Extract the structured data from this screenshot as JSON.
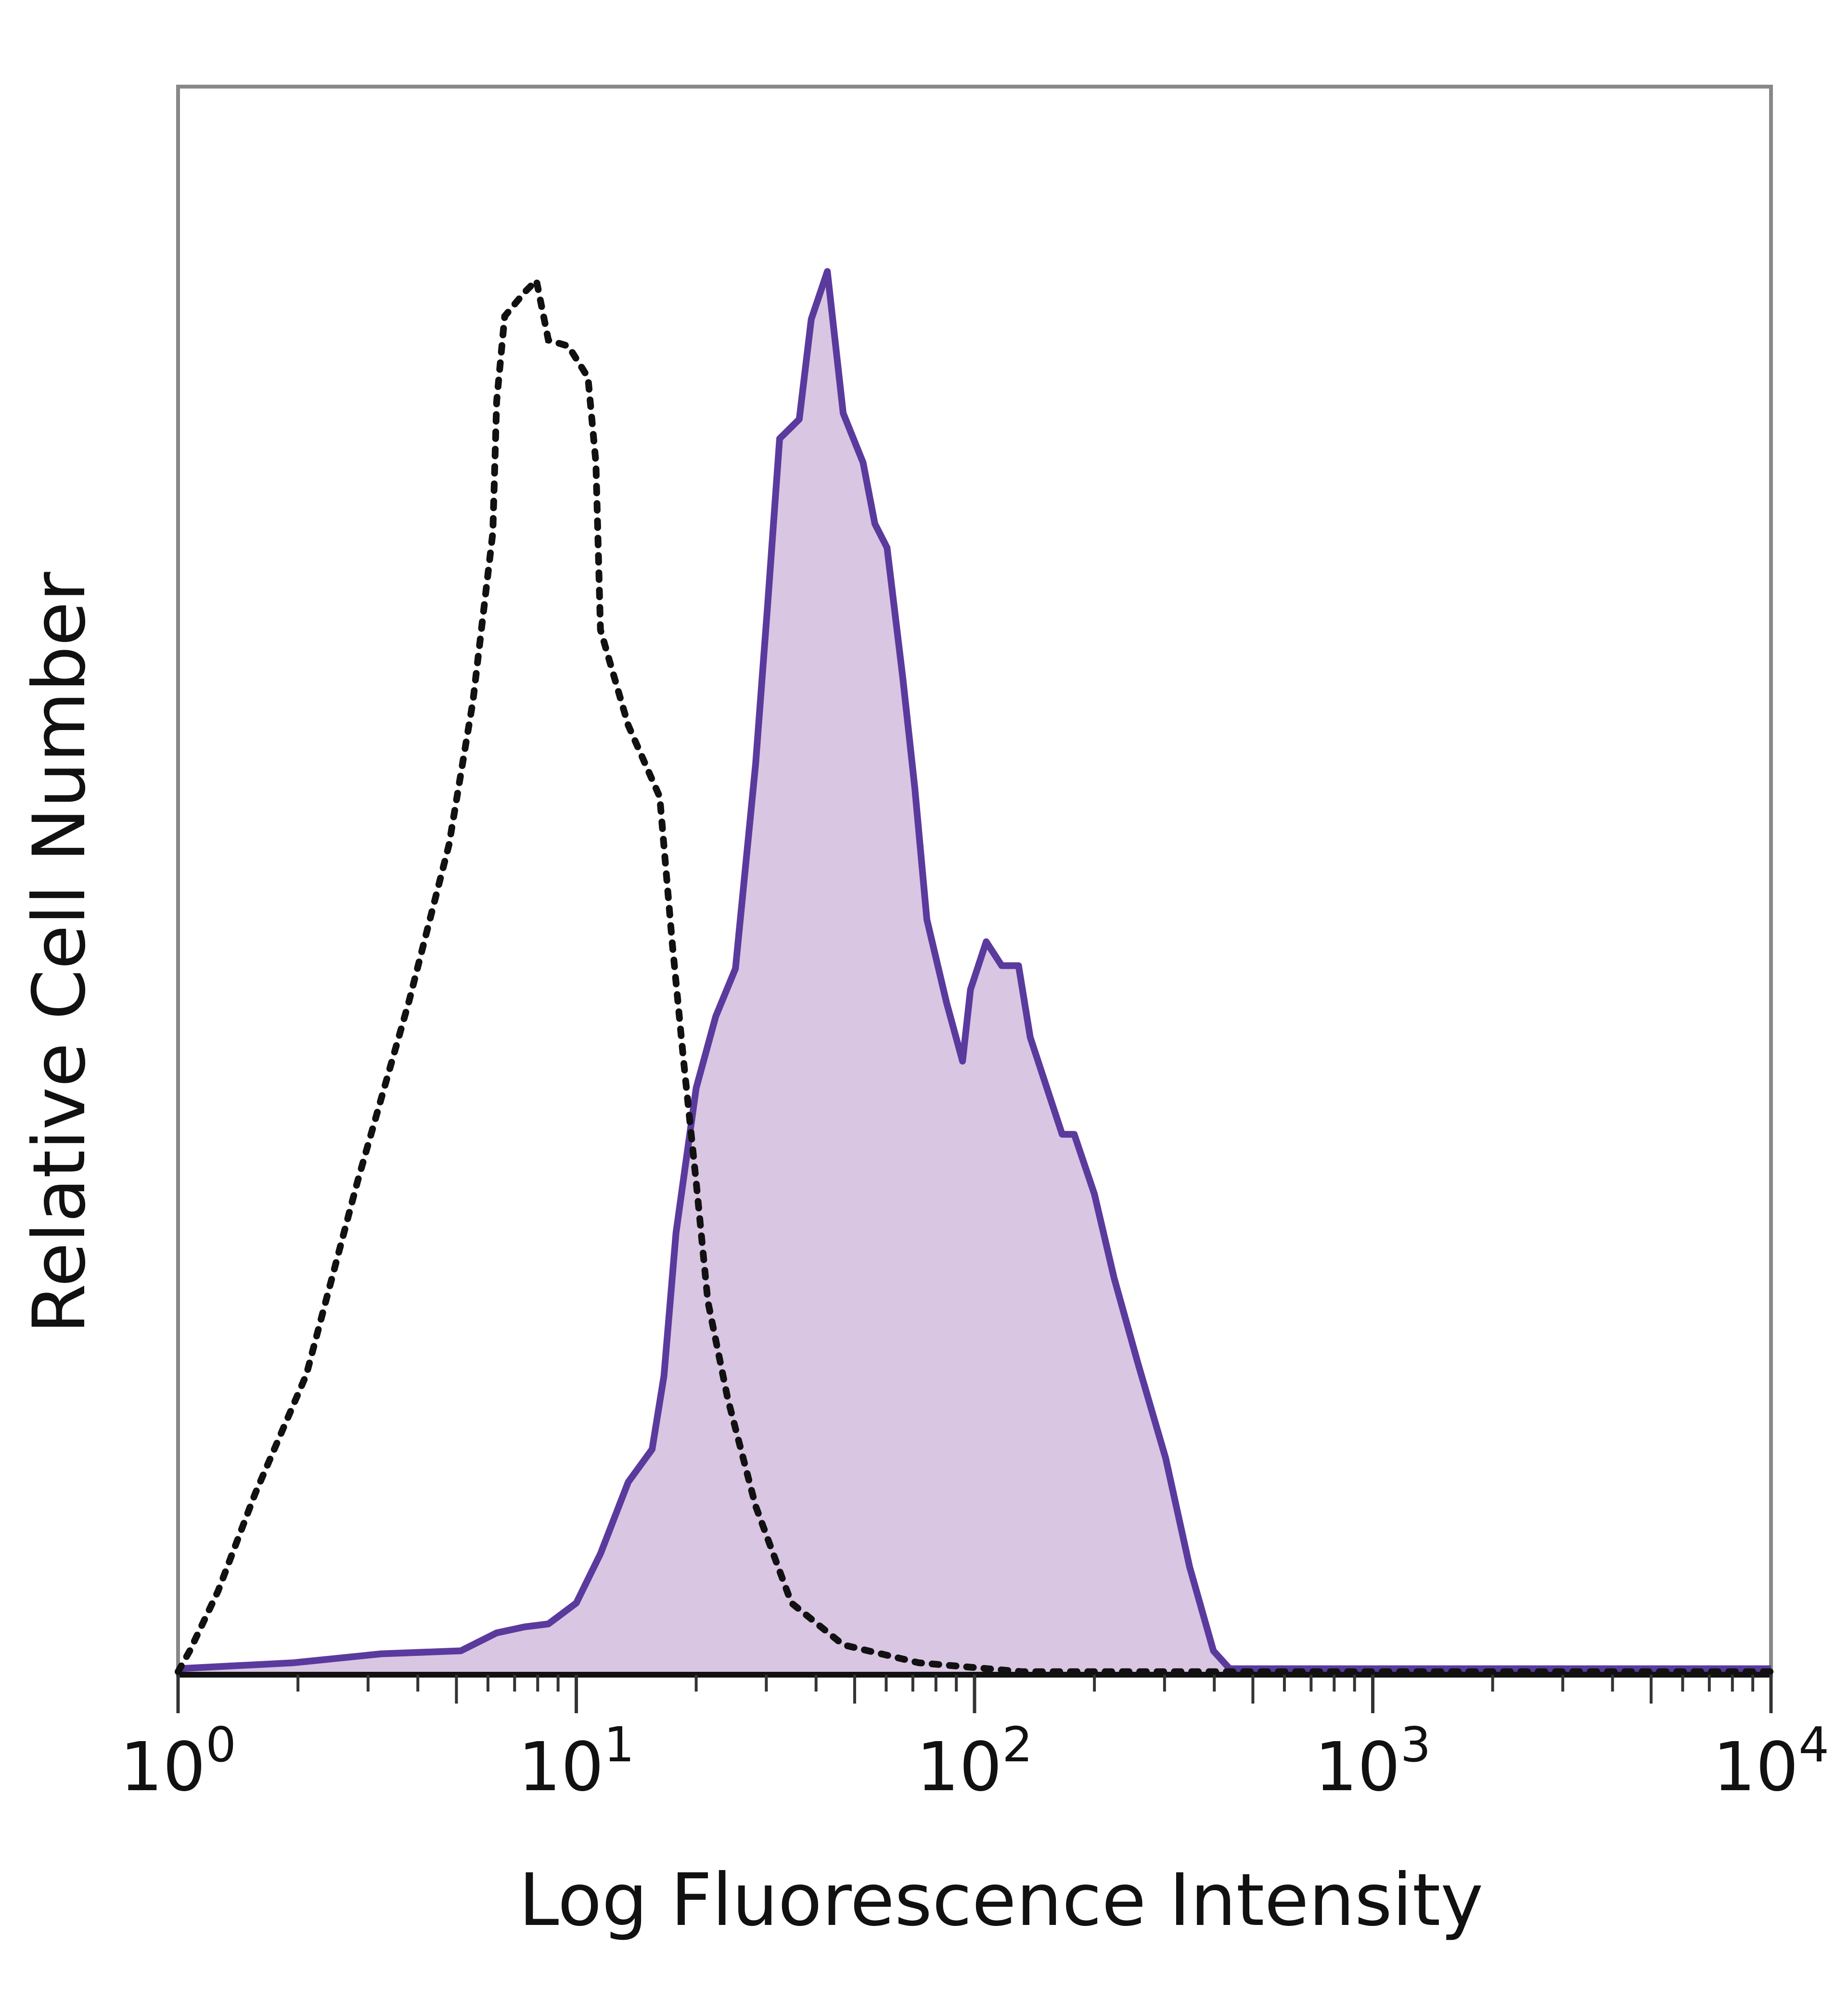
{
  "chart_data": {
    "type": "area",
    "xlabel": "Log Fluorescence Intensity",
    "ylabel": "Relative Cell Number",
    "xscale": "log",
    "xlim": [
      1,
      10000
    ],
    "ylim": [
      0,
      100
    ],
    "x_ticks": [
      {
        "base": "10",
        "exp": "0",
        "value": 1
      },
      {
        "base": "10",
        "exp": "1",
        "value": 10
      },
      {
        "base": "10",
        "exp": "2",
        "value": 100
      },
      {
        "base": "10",
        "exp": "3",
        "value": 1000
      },
      {
        "base": "10",
        "exp": "4",
        "value": 10000
      }
    ],
    "grid": false,
    "legend": "none",
    "series": [
      {
        "style": "dotted-outline",
        "color": "#111111",
        "x": [
          1,
          1.07,
          1.26,
          1.56,
          2.1,
          2.82,
          3.8,
          4.79,
          5.5,
          6.17,
          6.31,
          6.61,
          7.41,
          7.94,
          8.51,
          9.55,
          10.7,
          11.2,
          11.5,
          13.5,
          16.2,
          17.4,
          18.6,
          20,
          21.4,
          24,
          28.2,
          34.7,
          46.8,
          72.4,
          132,
          10000
        ],
        "y": [
          0.2,
          1.6,
          5.6,
          12.1,
          20.1,
          33.0,
          45.1,
          55.6,
          65.2,
          76.5,
          85.3,
          91.0,
          92.6,
          93.4,
          89.4,
          89.0,
          86.9,
          81.2,
          70.0,
          63.6,
          58.8,
          49.1,
          41.1,
          33.0,
          25.0,
          18.5,
          11.3,
          4.8,
          2.0,
          0.8,
          0.2,
          0.2
        ]
      },
      {
        "style": "filled",
        "color": "#5b3a9e",
        "fill": "#d9c6e2",
        "x": [
          1,
          1.95,
          3.24,
          5.13,
          6.31,
          7.41,
          8.51,
          10,
          11.5,
          13.5,
          15.5,
          16.6,
          17.8,
          20,
          22.4,
          25.1,
          28.2,
          30.2,
          32.4,
          36.3,
          38.9,
          42.7,
          46.8,
          52.5,
          56.2,
          60.3,
          66.1,
          70.8,
          75.9,
          85.1,
          93.3,
          97.7,
          107,
          117,
          129,
          138,
          155,
          166,
          178,
          200,
          224,
          257,
          302,
          347,
          398,
          437,
          10000
        ],
        "y": [
          0.4,
          0.8,
          1.4,
          1.6,
          2.8,
          3.2,
          3.4,
          4.8,
          8.1,
          12.9,
          15.1,
          20.0,
          29.6,
          39.3,
          44.1,
          47.3,
          61.0,
          71.5,
          82.8,
          84.1,
          90.8,
          94.0,
          84.5,
          81.2,
          77.1,
          75.5,
          66.7,
          59.4,
          50.6,
          45.0,
          41.1,
          45.9,
          49.1,
          47.5,
          47.5,
          42.7,
          38.6,
          36.2,
          36.2,
          32.2,
          26.6,
          20.9,
          14.5,
          7.2,
          1.6,
          0.4,
          0.4
        ]
      }
    ]
  }
}
